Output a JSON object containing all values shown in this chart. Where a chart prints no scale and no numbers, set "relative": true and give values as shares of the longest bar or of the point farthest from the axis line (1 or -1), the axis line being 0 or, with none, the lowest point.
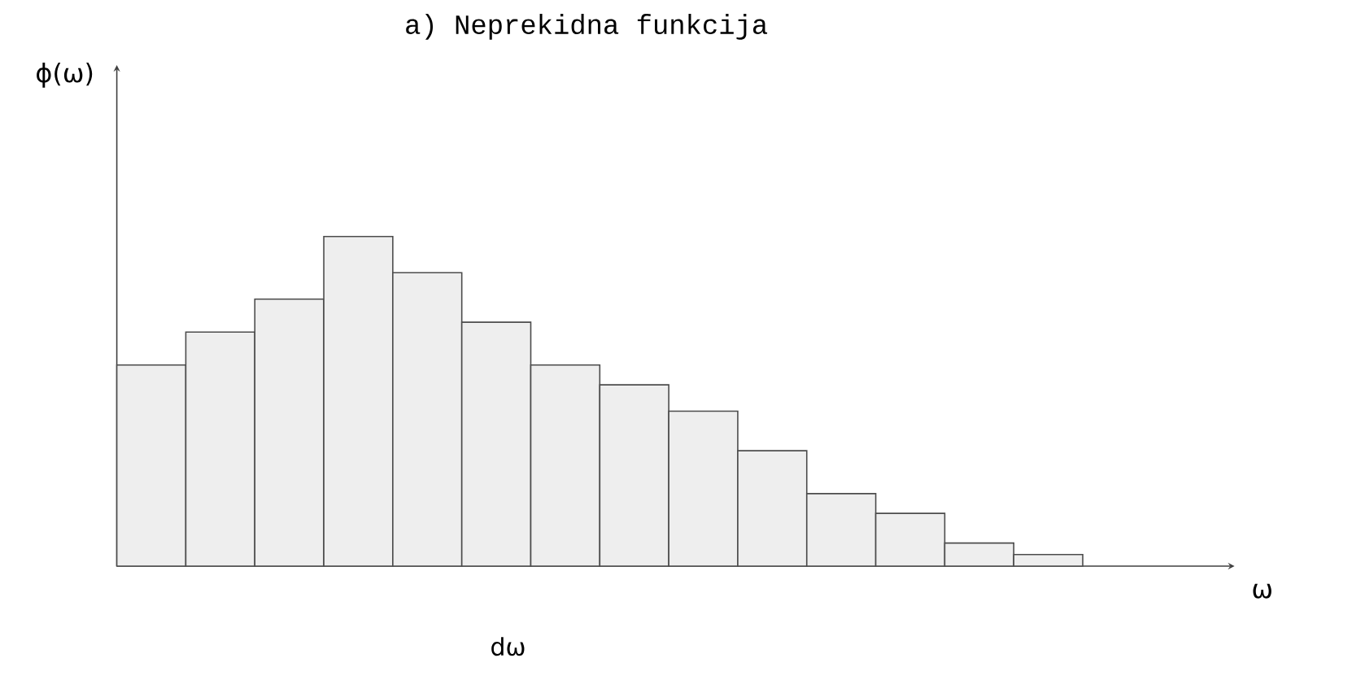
{
  "chart_data": {
    "type": "bar",
    "title": "a) Neprekidna funkcija",
    "annotations": [
      "ϕ(ω)",
      "ω",
      "dω"
    ],
    "relative": true,
    "color": "#eeeeee",
    "categories": [
      null,
      null,
      null,
      null,
      null,
      null,
      null,
      null,
      null,
      null,
      null,
      null,
      null,
      null
    ],
    "values": [
      0.61,
      0.71,
      0.81,
      1,
      0.89,
      0.74,
      0.61,
      0.55,
      0.47,
      0.35,
      0.22,
      0.16,
      0.07,
      0.035
    ]
  }
}
